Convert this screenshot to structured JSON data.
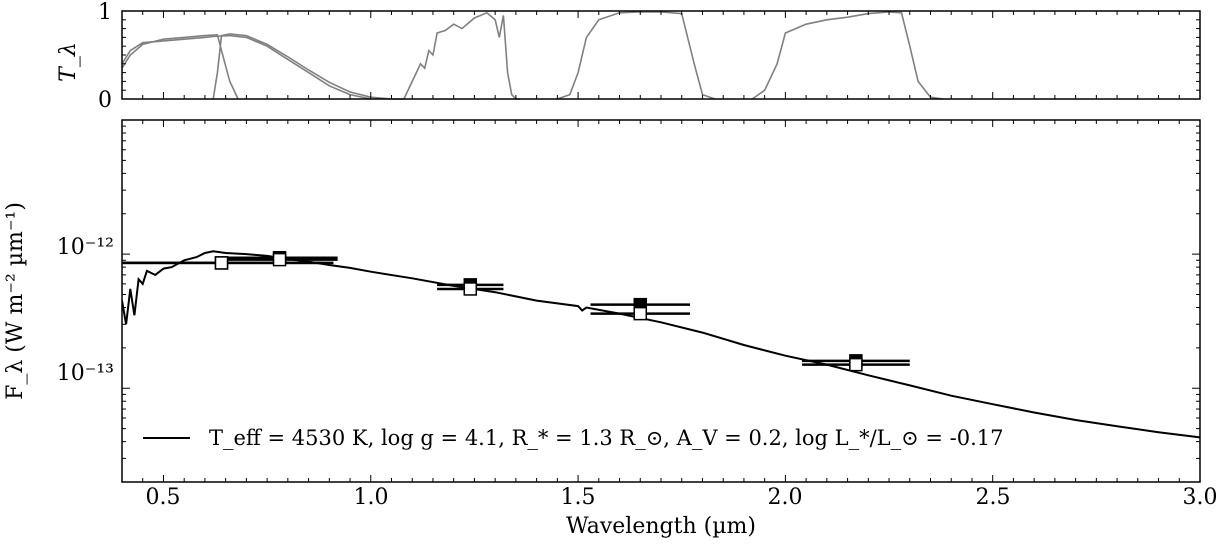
{
  "chart_data": [
    {
      "type": "line",
      "panel": "filter-transmission",
      "ylabel": "T_λ",
      "ylim": [
        0,
        1
      ],
      "y_ticks": [
        "0",
        "1"
      ],
      "xlim": [
        0.4,
        3.0
      ],
      "series": [
        {
          "color": "#808080",
          "x": [
            0.4,
            0.42,
            0.45,
            0.5,
            0.55,
            0.6,
            0.63,
            0.64,
            0.66,
            0.68
          ],
          "y": [
            0.35,
            0.5,
            0.62,
            0.68,
            0.7,
            0.72,
            0.73,
            0.55,
            0.2,
            0.0
          ]
        },
        {
          "color": "#808080",
          "x": [
            0.4,
            0.42,
            0.45,
            0.5,
            0.55,
            0.6,
            0.62,
            0.66,
            0.7,
            0.75,
            0.8,
            0.85,
            0.9,
            0.95,
            1.0
          ],
          "y": [
            0.4,
            0.55,
            0.64,
            0.66,
            0.68,
            0.7,
            0.71,
            0.72,
            0.7,
            0.6,
            0.45,
            0.3,
            0.15,
            0.05,
            0.0
          ]
        },
        {
          "color": "#808080",
          "x": [
            0.62,
            0.63,
            0.64,
            0.66,
            0.7,
            0.75,
            0.8,
            0.85,
            0.9,
            0.95,
            1.0,
            1.05,
            1.08
          ],
          "y": [
            0.0,
            0.3,
            0.72,
            0.74,
            0.72,
            0.62,
            0.48,
            0.33,
            0.19,
            0.08,
            0.02,
            0.0,
            0.0
          ]
        },
        {
          "color": "#808080",
          "x": [
            1.08,
            1.1,
            1.11,
            1.12,
            1.13,
            1.14,
            1.15,
            1.16,
            1.18,
            1.2,
            1.22,
            1.25,
            1.28,
            1.3,
            1.31,
            1.32,
            1.33,
            1.34,
            1.35,
            1.36
          ],
          "y": [
            0.0,
            0.2,
            0.3,
            0.4,
            0.35,
            0.55,
            0.5,
            0.75,
            0.78,
            0.85,
            0.8,
            0.92,
            0.98,
            0.9,
            0.7,
            0.95,
            0.3,
            0.05,
            0.0,
            0.0
          ]
        },
        {
          "color": "#808080",
          "x": [
            1.45,
            1.48,
            1.5,
            1.52,
            1.55,
            1.6,
            1.65,
            1.7,
            1.75,
            1.78,
            1.8,
            1.83
          ],
          "y": [
            0.0,
            0.05,
            0.3,
            0.7,
            0.9,
            0.98,
            0.99,
            0.99,
            0.97,
            0.4,
            0.05,
            0.0
          ]
        },
        {
          "color": "#808080",
          "x": [
            1.92,
            1.95,
            1.98,
            2.0,
            2.05,
            2.1,
            2.15,
            2.2,
            2.25,
            2.28,
            2.3,
            2.32,
            2.35,
            2.38
          ],
          "y": [
            0.0,
            0.1,
            0.4,
            0.75,
            0.85,
            0.9,
            0.93,
            0.97,
            0.99,
            0.98,
            0.6,
            0.2,
            0.02,
            0.0
          ]
        }
      ]
    },
    {
      "type": "line",
      "panel": "sed",
      "xlabel": "Wavelength (µm)",
      "ylabel": "F_λ (W m⁻² µm⁻¹)",
      "xlim": [
        0.4,
        3.0
      ],
      "ylim": [
        2e-14,
        1e-11
      ],
      "yscale": "log",
      "x_ticks": [
        "0.5",
        "1.0",
        "1.5",
        "2.0",
        "2.5",
        "3.0"
      ],
      "y_ticks": [
        "10⁻¹²",
        "10⁻¹³"
      ],
      "legend": {
        "placement": "lower-left",
        "label": "T_eff = 4530 K, log g = 4.1, R_* = 1.3 R_⊙, A_V = 0.2, log L_*/L_⊙ = -0.17"
      },
      "series": [
        {
          "name": "T_eff = 4530 K, log g = 4.1, R_* = 1.3 R_⊙, A_V = 0.2, log L_*/L_⊙ = -0.17",
          "color": "#000000",
          "x": [
            0.4,
            0.41,
            0.42,
            0.43,
            0.44,
            0.45,
            0.46,
            0.48,
            0.5,
            0.52,
            0.55,
            0.58,
            0.6,
            0.62,
            0.65,
            0.7,
            0.75,
            0.8,
            0.85,
            0.9,
            0.95,
            1.0,
            1.1,
            1.2,
            1.3,
            1.4,
            1.5,
            1.51,
            1.52,
            1.6,
            1.7,
            1.8,
            1.9,
            2.0,
            2.1,
            2.2,
            2.3,
            2.4,
            2.5,
            2.6,
            2.7,
            2.8,
            2.9,
            3.0
          ],
          "y": [
            4.5e-13,
            3e-13,
            5.5e-13,
            3.5e-13,
            6.5e-13,
            6e-13,
            7.5e-13,
            7e-13,
            7.8e-13,
            8e-13,
            9e-13,
            9.5e-13,
            1.02e-12,
            1.05e-12,
            1.02e-12,
            1e-12,
            9.7e-13,
            9.2e-13,
            8.8e-13,
            8.3e-13,
            7.9e-13,
            7.4e-13,
            6.6e-13,
            5.8e-13,
            5.2e-13,
            4.5e-13,
            4.1e-13,
            3.8e-13,
            4e-13,
            3.6e-13,
            3.1e-13,
            2.6e-13,
            2.1e-13,
            1.75e-13,
            1.5e-13,
            1.25e-13,
            1.05e-13,
            8.8e-14,
            7.6e-14,
            6.6e-14,
            5.8e-14,
            5.2e-14,
            4.7e-14,
            4.3e-14
          ]
        },
        {
          "name": "",
          "marker": "filled-square",
          "color": "#000000",
          "x": [
            0.64,
            0.78,
            1.24,
            1.65,
            2.17
          ],
          "y": [
            8.6e-13,
            9.4e-13,
            5.9e-13,
            4.2e-13,
            1.6e-13
          ],
          "x_err": [
            0.27,
            0.14,
            0.08,
            0.12,
            0.13
          ]
        },
        {
          "name": "",
          "marker": "open-square",
          "color": "#000000",
          "x": [
            0.64,
            0.78,
            1.24,
            1.65,
            2.17
          ],
          "y": [
            8.6e-13,
            9.1e-13,
            5.5e-13,
            3.6e-13,
            1.5e-13
          ],
          "x_err": [
            0.24,
            0.14,
            0.08,
            0.12,
            0.13
          ]
        }
      ]
    }
  ]
}
